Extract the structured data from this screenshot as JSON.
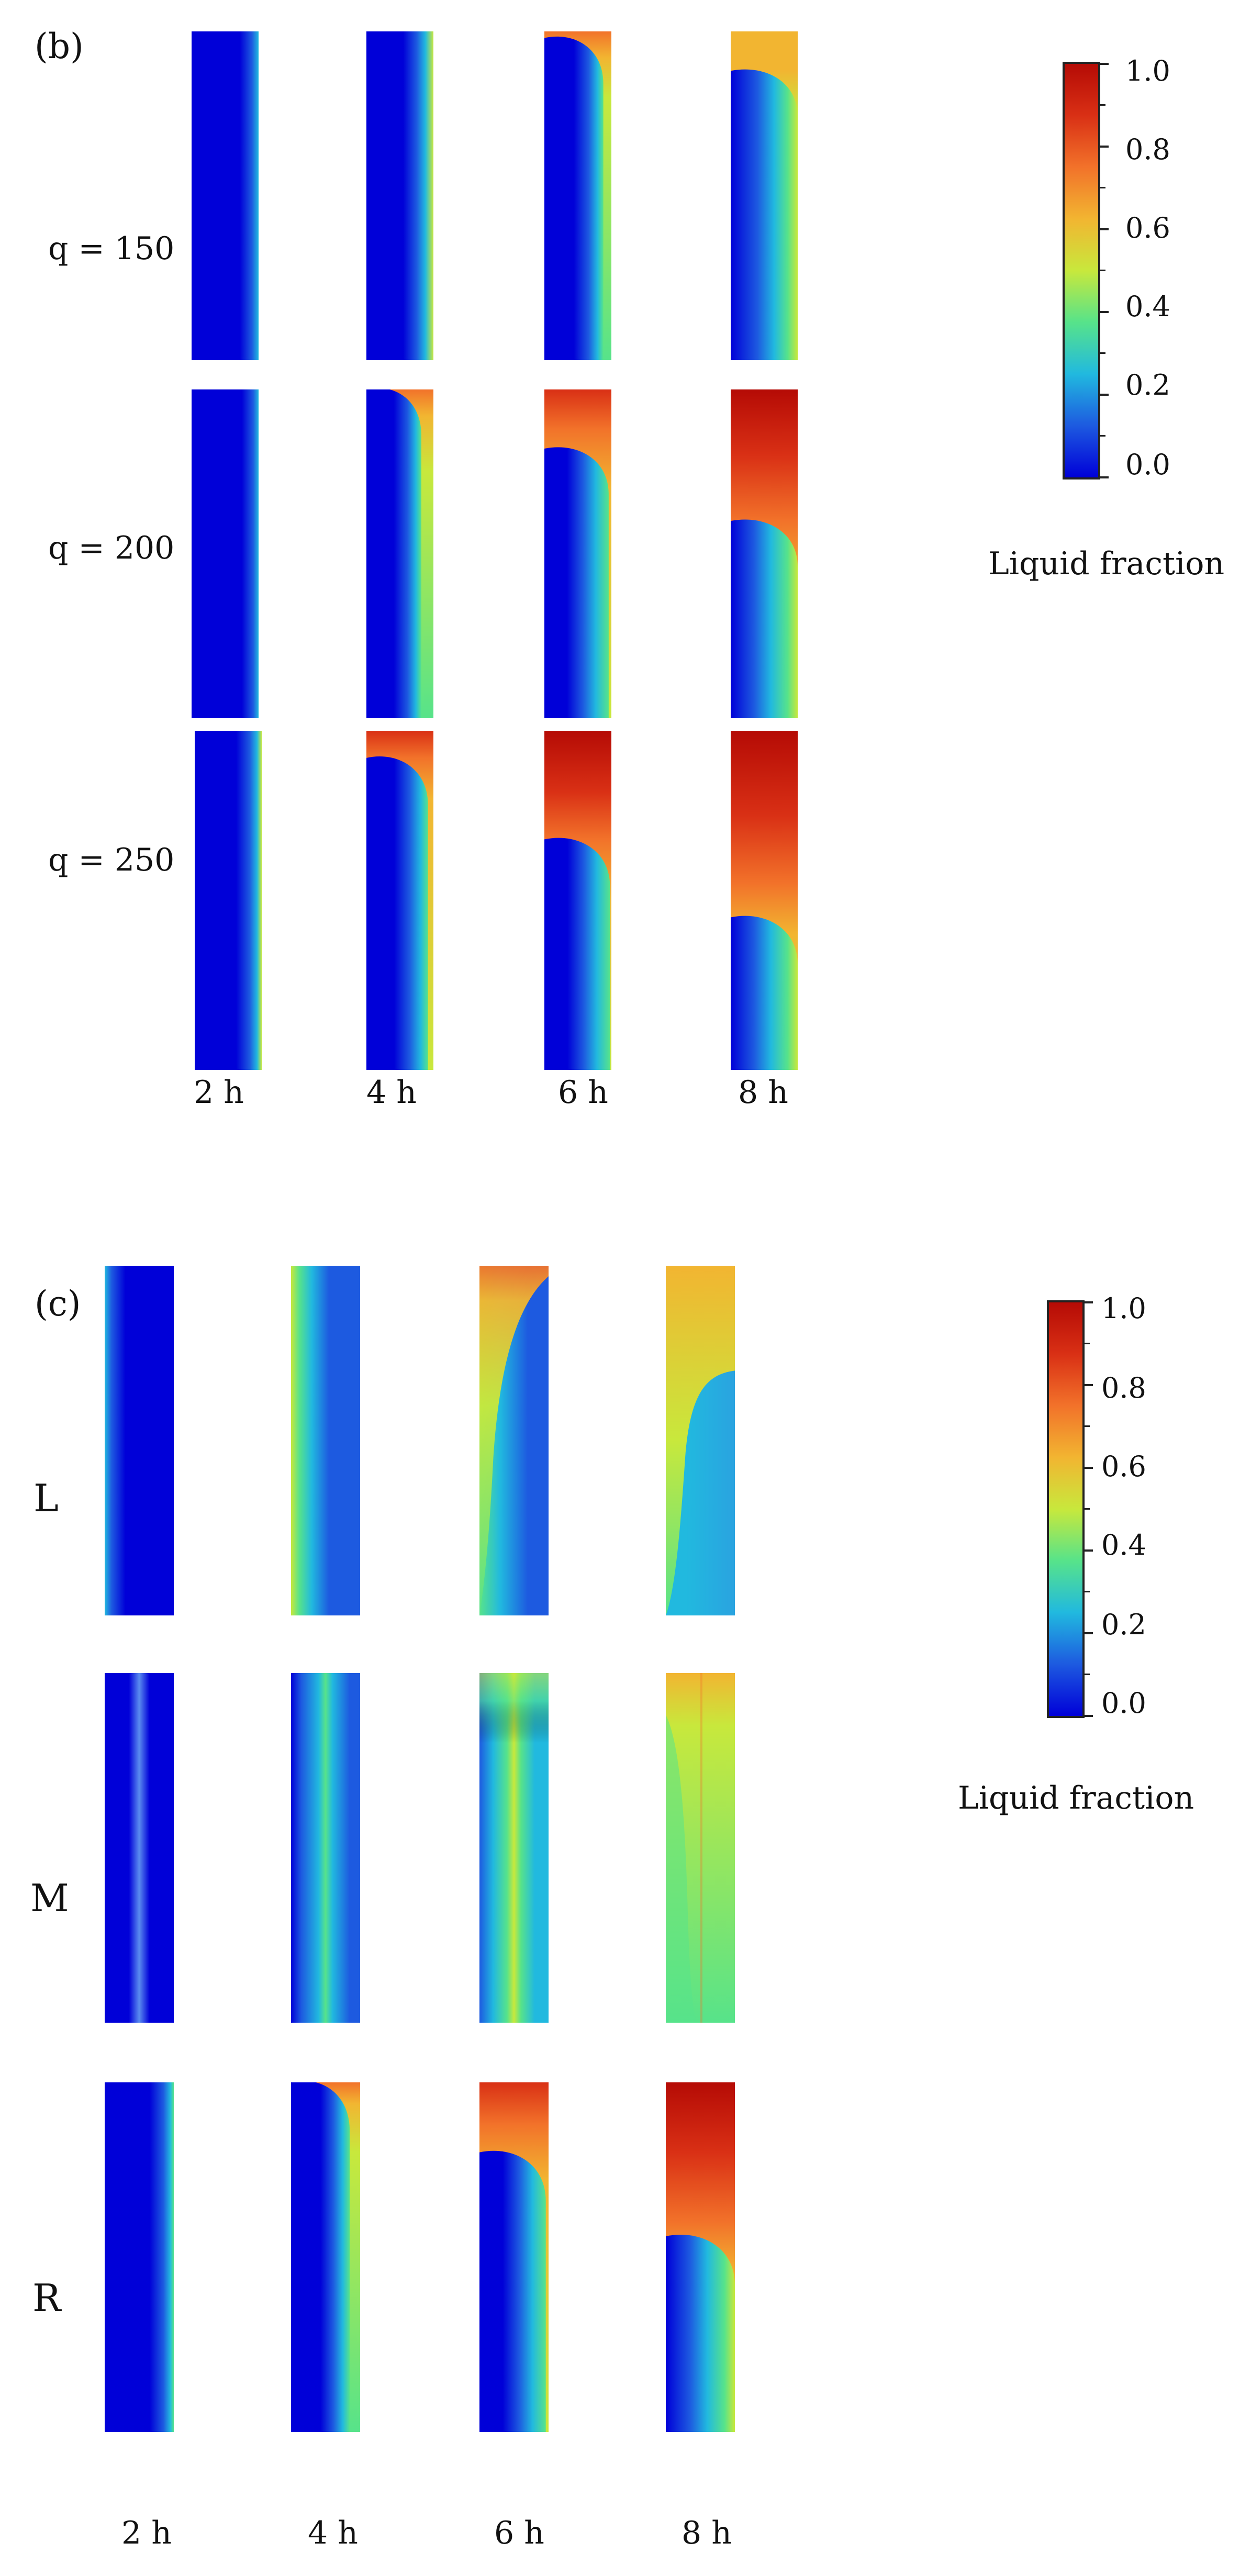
{
  "panel_b": {
    "label": "(b)",
    "rows": [
      "q = 150",
      "q = 200",
      "q = 250"
    ],
    "times": [
      "2 h",
      "4 h",
      "6 h",
      "8 h"
    ],
    "colorbar": {
      "ticks": [
        "1.0",
        "0.8",
        "0.6",
        "0.4",
        "0.2",
        "0.0"
      ],
      "title": "Liquid fraction"
    }
  },
  "panel_c": {
    "label": "(c)",
    "rows": [
      "L",
      "M",
      "R"
    ],
    "times": [
      "2 h",
      "4 h",
      "6 h",
      "8 h"
    ],
    "colorbar": {
      "ticks": [
        "1.0",
        "0.8",
        "0.6",
        "0.4",
        "0.2",
        "0.0"
      ],
      "title": "Liquid fraction"
    }
  },
  "colormap": [
    "#0000d8",
    "#1d5ae0",
    "#21b9df",
    "#57e38a",
    "#c8e83c",
    "#f2b531",
    "#f2722a",
    "#d93015",
    "#b50b05"
  ],
  "colorbar_range": [
    0.0,
    1.0
  ]
}
